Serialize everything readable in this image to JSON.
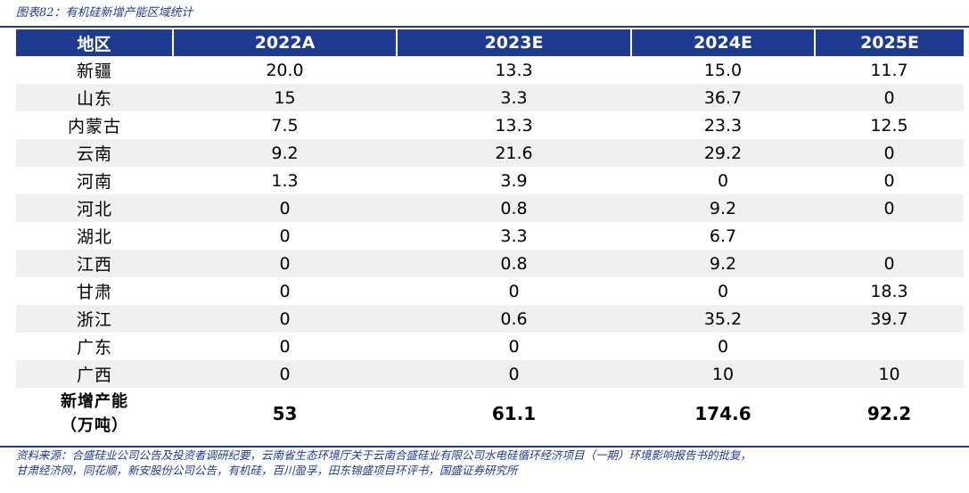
{
  "title": "图表82：有机硅新增产能区域统计",
  "header": [
    "地区",
    "2022A",
    "2023E",
    "2024E",
    "2025E"
  ],
  "rows": [
    [
      "新疆",
      "20.0",
      "13.3",
      "15.0",
      "11.7"
    ],
    [
      "山东",
      "15",
      "3.3",
      "36.7",
      "0"
    ],
    [
      "内蒙古",
      "7.5",
      "13.3",
      "23.3",
      "12.5"
    ],
    [
      "云南",
      "9.2",
      "21.6",
      "29.2",
      "0"
    ],
    [
      "河南",
      "1.3",
      "3.9",
      "0",
      "0"
    ],
    [
      "河北",
      "0",
      "0.8",
      "9.2",
      "0"
    ],
    [
      "湖北",
      "0",
      "3.3",
      "6.7",
      ""
    ],
    [
      "江西",
      "0",
      "0.8",
      "9.2",
      "0"
    ],
    [
      "甘肃",
      "0",
      "0",
      "0",
      "18.3"
    ],
    [
      "浙江",
      "0",
      "0.6",
      "35.2",
      "39.7"
    ],
    [
      "广东",
      "0",
      "0",
      "0",
      ""
    ],
    [
      "广西",
      "0",
      "0",
      "10",
      "10"
    ]
  ],
  "total": {
    "label_line1": "新增产能",
    "label_line2": "（万吨）",
    "values": [
      "53",
      "61.1",
      "174.6",
      "92.2"
    ]
  },
  "source_line1": "资料来源：合盛硅业公司公告及投资者调研纪要，云南省生态环境厅关于云南合盛硅业有限公司水电硅循环经济项目（一期）环境影响报告书的批复，",
  "source_line2": "甘肃经济网，同花顺，新安股份公司公告，有机硅，百川盈孚，田东锦盛项目环评书，国盛证券研究所",
  "colors": {
    "accent": "#1f3b8f",
    "stripe": "#f0f0f0"
  }
}
